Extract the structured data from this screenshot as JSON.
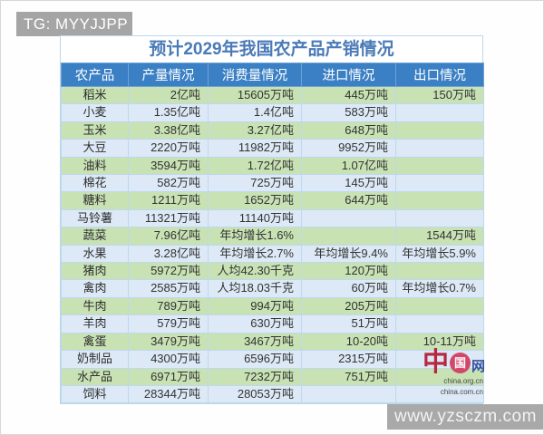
{
  "watermarks": {
    "tg": "TG: MYYJJPP",
    "site": "www.yzsczm.com"
  },
  "chart_data": {
    "type": "table",
    "title": "预计2029年我国农产品产销情况",
    "columns": [
      "农产品",
      "产量情况",
      "消费量情况",
      "进口情况",
      "出口情况"
    ],
    "rows": [
      [
        "稻米",
        "2亿吨",
        "15605万吨",
        "445万吨",
        "150万吨"
      ],
      [
        "小麦",
        "1.35亿吨",
        "1.4亿吨",
        "583万吨",
        ""
      ],
      [
        "玉米",
        "3.38亿吨",
        "3.27亿吨",
        "648万吨",
        ""
      ],
      [
        "大豆",
        "2220万吨",
        "11982万吨",
        "9952万吨",
        ""
      ],
      [
        "油料",
        "3594万吨",
        "1.72亿吨",
        "1.07亿吨",
        ""
      ],
      [
        "棉花",
        "582万吨",
        "725万吨",
        "145万吨",
        ""
      ],
      [
        "糖料",
        "1211万吨",
        "1652万吨",
        "644万吨",
        ""
      ],
      [
        "马铃薯",
        "11321万吨",
        "11140万吨",
        "",
        ""
      ],
      [
        "蔬菜",
        "7.96亿吨",
        "年均增长1.6%",
        "",
        "1544万吨"
      ],
      [
        "水果",
        "3.28亿吨",
        "年均增长2.7%",
        "年均增长9.4%",
        "年均增长5.9%"
      ],
      [
        "猪肉",
        "5972万吨",
        "人均42.30千克",
        "120万吨",
        ""
      ],
      [
        "禽肉",
        "2585万吨",
        "人均18.03千克",
        "60万吨",
        "年均增长0.7%"
      ],
      [
        "牛肉",
        "789万吨",
        "994万吨",
        "205万吨",
        ""
      ],
      [
        "羊肉",
        "579万吨",
        "630万吨",
        "51万吨",
        ""
      ],
      [
        "禽蛋",
        "3479万吨",
        "3467万吨",
        "10-20吨",
        "10-11万吨"
      ],
      [
        "奶制品",
        "4300万吨",
        "6596万吨",
        "2315万吨",
        ""
      ],
      [
        "水产品",
        "6971万吨",
        "7232万吨",
        "751万吨",
        ""
      ],
      [
        "饲料",
        "28344万吨",
        "28053万吨",
        "",
        ""
      ]
    ]
  },
  "logo": {
    "zhong": "中",
    "guo": "国",
    "wang": "网",
    "domain1": "china.org.cn",
    "domain2": "china.com.cn"
  },
  "colors": {
    "header_bg": "#3b80c4",
    "row_green": "#c8e2b4",
    "row_blue": "#dde9f6",
    "title_text": "#4a7ab8",
    "watermark_bg": "#a5a5a5",
    "logo_red": "#d2486b",
    "logo_blue": "#33539f"
  }
}
